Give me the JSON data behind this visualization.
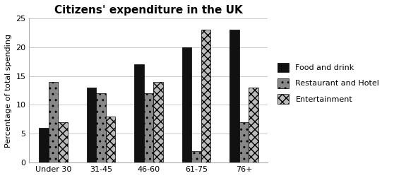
{
  "title": "Citizens' expenditure in the UK",
  "ylabel": "Percentage of total spending",
  "categories": [
    "Under 30",
    "31-45",
    "46-60",
    "61-75",
    "76+"
  ],
  "series": {
    "Food and drink": [
      6,
      13,
      17,
      20,
      23
    ],
    "Restaurant and Hotel": [
      14,
      12,
      12,
      2,
      7
    ],
    "Entertainment": [
      7,
      8,
      14,
      23,
      13
    ]
  },
  "ylim": [
    0,
    25
  ],
  "yticks": [
    0,
    5,
    10,
    15,
    20,
    25
  ],
  "legend_labels": [
    "Food and drink",
    "Restaurant and Hotel",
    "Entertainment"
  ],
  "background_color": "#ffffff",
  "title_fontsize": 11,
  "axis_fontsize": 8,
  "legend_fontsize": 8,
  "bar_width": 0.2,
  "food_color": "#111111",
  "restaurant_color": "#888888",
  "entertainment_color": "#bbbbbb",
  "restaurant_hatch": "..",
  "entertainment_hatch": "xxx"
}
